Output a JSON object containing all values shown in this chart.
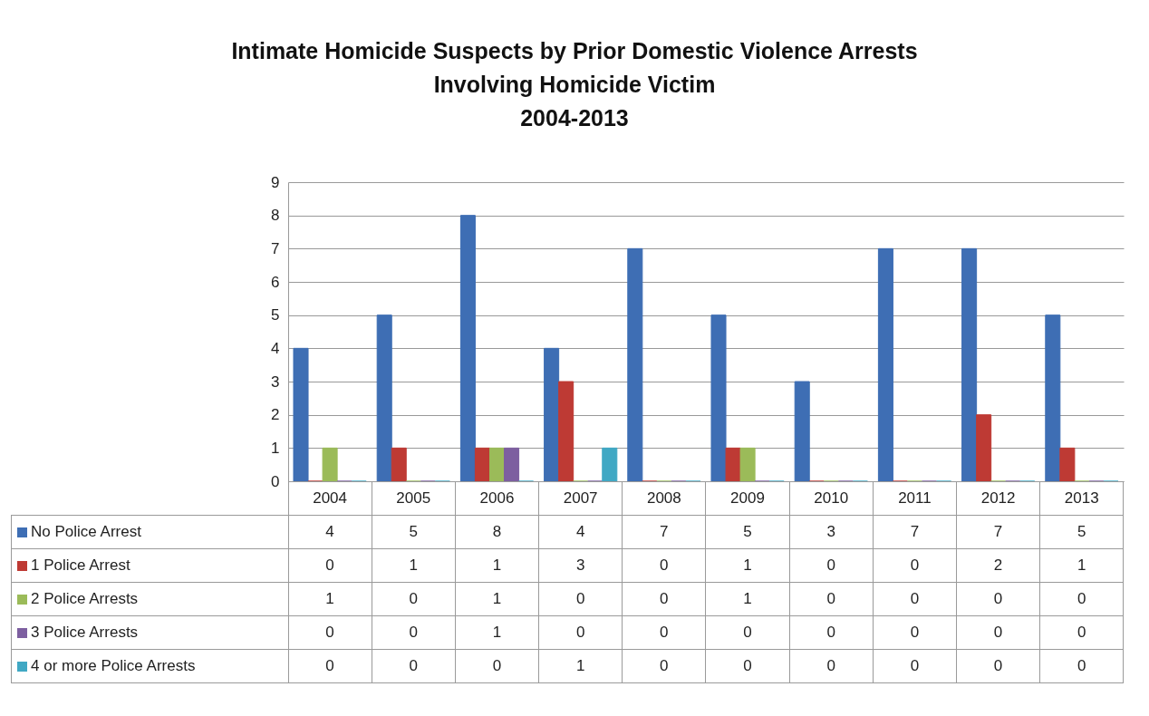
{
  "chart_data": {
    "type": "bar",
    "title": "Intimate Homicide Suspects by Prior Domestic Violence Arrests Involving Homicide Victim",
    "subtitle": "2004-2013",
    "categories": [
      "2004",
      "2005",
      "2006",
      "2007",
      "2008",
      "2009",
      "2010",
      "2011",
      "2012",
      "2013"
    ],
    "series": [
      {
        "name": "No Police Arrest",
        "color": "#3e6eb4",
        "values": [
          4,
          5,
          8,
          4,
          7,
          5,
          3,
          7,
          7,
          5
        ]
      },
      {
        "name": "1 Police Arrest",
        "color": "#be3a34",
        "values": [
          0,
          1,
          1,
          3,
          0,
          1,
          0,
          0,
          2,
          1
        ]
      },
      {
        "name": "2 Police Arrests",
        "color": "#9bbb59",
        "values": [
          1,
          0,
          1,
          0,
          0,
          1,
          0,
          0,
          0,
          0
        ]
      },
      {
        "name": "3 Police Arrests",
        "color": "#7d5fa0",
        "values": [
          0,
          0,
          1,
          0,
          0,
          0,
          0,
          0,
          0,
          0
        ]
      },
      {
        "name": "4 or more Police Arrests",
        "color": "#40a8c4",
        "values": [
          0,
          0,
          0,
          1,
          0,
          0,
          0,
          0,
          0,
          0
        ]
      }
    ],
    "ylim": [
      0,
      9
    ],
    "yticks": [
      0,
      1,
      2,
      3,
      4,
      5,
      6,
      7,
      8,
      9
    ],
    "grid": "y",
    "legend": "bottom left",
    "data_labels": true
  }
}
